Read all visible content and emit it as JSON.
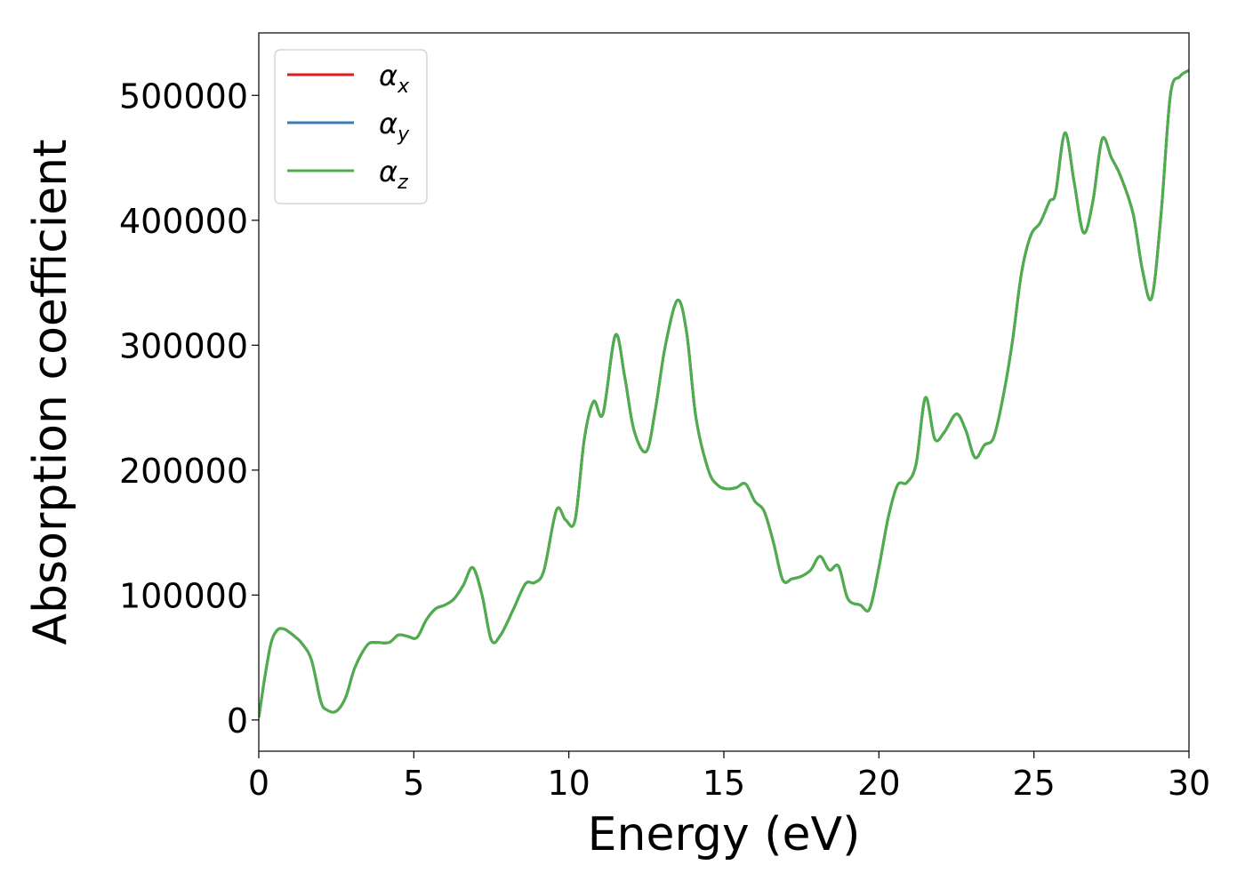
{
  "chart_data": {
    "type": "line",
    "title": "",
    "xlabel": "Energy (eV)",
    "ylabel": "Absorption coefficient",
    "xlim": [
      0,
      30
    ],
    "ylim": [
      -25000,
      550000
    ],
    "xticks": [
      0,
      5,
      10,
      15,
      20,
      25,
      30
    ],
    "xtick_labels": [
      "0",
      "5",
      "10",
      "15",
      "20",
      "25",
      "30"
    ],
    "yticks": [
      0,
      100000,
      200000,
      300000,
      400000,
      500000
    ],
    "ytick_labels": [
      "0",
      "100000",
      "200000",
      "300000",
      "400000",
      "500000"
    ],
    "grid": false,
    "legend_position": "top-left",
    "series": [
      {
        "name": "α",
        "subscript": "x",
        "color": "#e41a1c",
        "values_ref": "shared"
      },
      {
        "name": "α",
        "subscript": "y",
        "color": "#377eb8",
        "values_ref": "shared"
      },
      {
        "name": "α",
        "subscript": "z",
        "color": "#4daf4a",
        "values_ref": "shared"
      }
    ],
    "x": [
      0,
      0.2,
      0.4,
      0.6,
      0.8,
      1.0,
      1.2,
      1.4,
      1.7,
      2.0,
      2.2,
      2.5,
      2.8,
      3.1,
      3.5,
      3.8,
      4.2,
      4.5,
      4.8,
      5.1,
      5.4,
      5.7,
      6.0,
      6.3,
      6.6,
      6.9,
      7.2,
      7.5,
      7.8,
      8.2,
      8.6,
      8.9,
      9.2,
      9.6,
      9.9,
      10.2,
      10.5,
      10.8,
      11.1,
      11.5,
      11.8,
      12.1,
      12.5,
      12.8,
      13.1,
      13.5,
      13.8,
      14.1,
      14.5,
      14.8,
      15.1,
      15.4,
      15.7,
      16.0,
      16.3,
      16.6,
      16.9,
      17.2,
      17.5,
      17.8,
      18.1,
      18.4,
      18.7,
      19.0,
      19.4,
      19.7,
      20.0,
      20.3,
      20.6,
      20.9,
      21.2,
      21.5,
      21.8,
      22.1,
      22.5,
      22.8,
      23.1,
      23.4,
      23.7,
      24.0,
      24.3,
      24.6,
      24.9,
      25.2,
      25.5,
      25.7,
      26.0,
      26.3,
      26.6,
      26.9,
      27.2,
      27.5,
      27.8,
      28.2,
      28.5,
      28.8,
      29.1,
      29.4,
      29.7,
      30.0
    ],
    "values": [
      2000,
      35000,
      62000,
      72000,
      73000,
      70000,
      66000,
      61000,
      48000,
      15000,
      8000,
      7000,
      18000,
      42000,
      60000,
      62000,
      62000,
      68000,
      67000,
      66000,
      80000,
      89000,
      92000,
      97000,
      108000,
      122000,
      100000,
      64000,
      68000,
      88000,
      109000,
      110000,
      120000,
      168000,
      160000,
      160000,
      225000,
      255000,
      245000,
      308000,
      275000,
      232000,
      215000,
      250000,
      298000,
      336000,
      310000,
      242000,
      200000,
      188000,
      185000,
      186000,
      189000,
      175000,
      167000,
      142000,
      112000,
      113000,
      115000,
      120000,
      131000,
      120000,
      123000,
      97000,
      92000,
      89000,
      122000,
      162000,
      188000,
      190000,
      205000,
      258000,
      225000,
      230000,
      245000,
      232000,
      210000,
      220000,
      226000,
      258000,
      302000,
      358000,
      388000,
      398000,
      415000,
      422000,
      470000,
      430000,
      390000,
      415000,
      465000,
      450000,
      435000,
      405000,
      360000,
      338000,
      405000,
      500000,
      515000,
      520000
    ]
  }
}
